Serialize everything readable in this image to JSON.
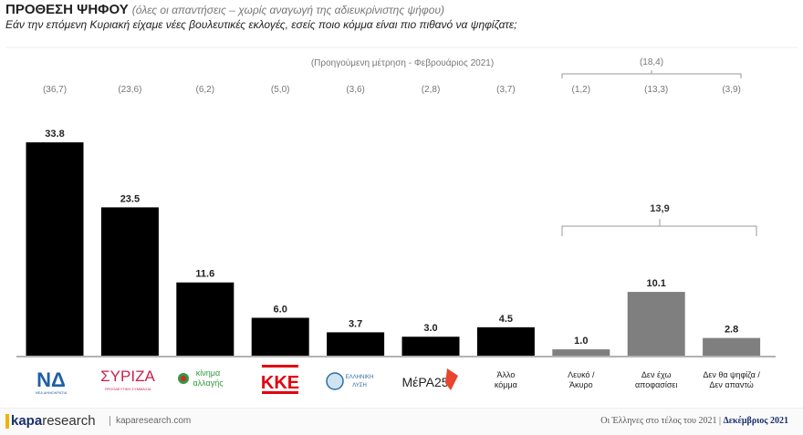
{
  "header": {
    "title": "ΠΡΟΘΕΣΗ ΨΗΦΟΥ",
    "subtitle": "(όλες οι απαντήσεις – χωρίς αναγωγή της αδιευκρίνιστης ψήφου)",
    "question": "Εάν την επόμενη Κυριακή είχαμε νέες βουλευτικές εκλογές, εσείς ποιο κόμμα είναι πιο πιθανό να ψηφίζατε;"
  },
  "chart_data": {
    "type": "bar",
    "previous_label": "(Προηγούμενη μέτρηση - Φεβρουάριος 2021)",
    "categories": [
      "ΝΕΑ ΔΗΜΟΚΡΑΤΙΑ",
      "ΣΥΡΙΖΑ",
      "κίνημα αλλαγής",
      "ΚΚΕ",
      "ΕΛΛΗΝΙΚΗ ΛΥΣΗ",
      "ΜέΡΑ25",
      "Άλλο κόμμα",
      "Λευκό / Άκυρο",
      "Δεν έχω αποφασίσει",
      "Δεν θα ψηφίζα / Δεν απαντώ"
    ],
    "values": [
      33.8,
      23.5,
      11.6,
      6.0,
      3.7,
      3.0,
      4.5,
      1.0,
      10.1,
      2.8
    ],
    "value_labels": [
      "33.8",
      "23.5",
      "11.6",
      "6.0",
      "3.7",
      "3.0",
      "4.5",
      "1.0",
      "10.1",
      "2.8"
    ],
    "previous_labels": [
      "(36,7)",
      "(23,6)",
      "(6,2)",
      "(5,0)",
      "(3,6)",
      "(2,8)",
      "(3,7)",
      "(1,2)",
      "(13,3)",
      "(3,9)"
    ],
    "group_total_label": "13,9",
    "group_previous_label": "(18,4)",
    "colors": {
      "party": "#000000",
      "other": "#7f7f7f"
    },
    "ylim": [
      0,
      36
    ]
  },
  "logos": {
    "nd": {
      "mark": "ΝΔ",
      "text": "ΝΕΑ ΔΗΜΟΚΡΑΤΙΑ"
    },
    "syriza": {
      "mark": "ΣΥΡΙΖΑ",
      "text": "ΠΡΟΟΔΕΥΤΙΚΗ ΣΥΜΜΑΧΙΑ"
    },
    "kinal": {
      "line1": "κίνημα",
      "line2": "αλλαγής"
    },
    "kke": {
      "mark": "ΚΚΕ"
    },
    "elliniki": {
      "line1": "ΕΛΛΗΝΙΚΗ",
      "line2": "ΛΥΣΗ"
    },
    "mera": {
      "mark": "ΜέΡΑ25"
    }
  },
  "text_labels": [
    {
      "line1": "Άλλο",
      "line2": "κόμμα"
    },
    {
      "line1": "Λευκό /",
      "line2": "Άκυρο"
    },
    {
      "line1": "Δεν έχω",
      "line2": "αποφασίσει"
    },
    {
      "line1": "Δεν θα ψηφίζα /",
      "line2": "Δεν απαντώ"
    }
  ],
  "footer": {
    "brand_bold": "kapa",
    "brand_rest": "research",
    "site": "kaparesearch.com",
    "survey": "Οι Έλληνες στο τέλος του 2021 | ",
    "month": "Δεκέμβριος 2021"
  }
}
